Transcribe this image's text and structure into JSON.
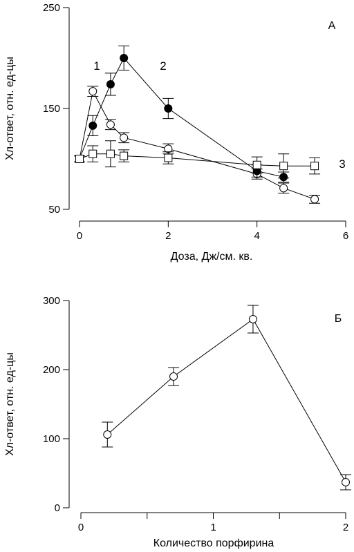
{
  "chart_data": [
    {
      "panel": "A",
      "type": "scatter",
      "title": "",
      "xlabel": "Доза, Дж/см. кв.",
      "ylabel": "Хл-ответ, отн. ед-цы",
      "xlim": [
        0,
        6
      ],
      "ylim": [
        50,
        250
      ],
      "xticks": [
        0,
        2,
        4,
        6
      ],
      "yticks": [
        50,
        150,
        250
      ],
      "xtick_labels": [
        "0",
        "2",
        "4",
        "6"
      ],
      "ytick_labels": [
        "50",
        "150",
        "250"
      ],
      "grid": false,
      "series": [
        {
          "label": "1",
          "marker": "open-circle",
          "x": [
            0,
            0.3,
            0.7,
            1.0,
            2.0,
            4.0,
            4.6,
            5.3
          ],
          "y": [
            100,
            167,
            134,
            121,
            110,
            85,
            71,
            60
          ],
          "err": [
            3,
            5,
            5,
            5,
            5,
            5,
            5,
            4
          ]
        },
        {
          "label": "2",
          "marker": "filled-circle",
          "x": [
            0,
            0.3,
            0.7,
            1.0,
            2.0,
            4.0,
            4.6
          ],
          "y": [
            100,
            133,
            174,
            200,
            150,
            88,
            82
          ],
          "err": [
            3,
            10,
            11,
            12,
            10,
            6,
            5
          ]
        },
        {
          "label": "3",
          "marker": "open-square",
          "x": [
            0,
            0.3,
            0.7,
            1.0,
            2.0,
            4.0,
            4.6,
            5.3
          ],
          "y": [
            100,
            105,
            105,
            103,
            101,
            94,
            93,
            93
          ],
          "err": [
            3,
            8,
            13,
            6,
            6,
            8,
            12,
            8
          ]
        }
      ]
    },
    {
      "panel": "Б",
      "type": "line",
      "title": "",
      "xlabel": "Количество порфирина",
      "ylabel": "Хл-ответ, отн. ед-цы",
      "xlim": [
        0,
        2
      ],
      "ylim": [
        0,
        300
      ],
      "xticks": [
        0,
        1,
        2
      ],
      "xticks_minor": [
        0.5,
        1.5
      ],
      "yticks": [
        0,
        100,
        200,
        300
      ],
      "xtick_labels": [
        "0",
        "1",
        "2"
      ],
      "ytick_labels": [
        "0",
        "100",
        "200",
        "300"
      ],
      "grid": false,
      "series": [
        {
          "marker": "open-circle",
          "x": [
            0.2,
            0.7,
            1.3,
            2.0
          ],
          "y": [
            106,
            190,
            273,
            37
          ],
          "err": [
            18,
            13,
            20,
            11
          ]
        }
      ]
    }
  ]
}
